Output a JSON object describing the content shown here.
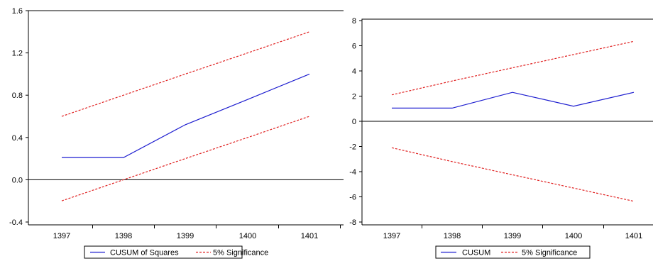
{
  "colors": {
    "series": "#1f1fd0",
    "significance": "#e02020",
    "axis": "#000000",
    "frame": "#000000"
  },
  "chart_data": [
    {
      "type": "line",
      "x": [
        "1397",
        "1398",
        "1399",
        "1400",
        "1401"
      ],
      "ylim": [
        -0.4,
        1.6
      ],
      "yticks": [
        -0.4,
        0.0,
        0.4,
        0.8,
        1.2,
        1.6
      ],
      "ytick_labels": [
        "-0.4",
        "0.0",
        "0.4",
        "0.8",
        "1.2",
        "1.6"
      ],
      "grid": false,
      "legend_position": "bottom",
      "series": [
        {
          "name": "CUSUM of Squares",
          "style": "solid",
          "values": [
            0.21,
            0.21,
            0.52,
            0.76,
            1.0
          ]
        },
        {
          "name": "5% Significance",
          "style": "dashed",
          "values": [
            0.6,
            0.8,
            1.0,
            1.2,
            1.4
          ]
        },
        {
          "name": "5% Significance",
          "style": "dashed",
          "values": [
            -0.2,
            0.0,
            0.2,
            0.4,
            0.6
          ]
        }
      ]
    },
    {
      "type": "line",
      "x": [
        "1397",
        "1398",
        "1399",
        "1400",
        "1401"
      ],
      "ylim": [
        -8,
        8
      ],
      "yticks": [
        -8,
        -6,
        -4,
        -2,
        0,
        2,
        4,
        6,
        8
      ],
      "ytick_labels": [
        "-8",
        "-6",
        "-4",
        "-2",
        "0",
        "2",
        "4",
        "6",
        "8"
      ],
      "grid": false,
      "legend_position": "bottom",
      "series": [
        {
          "name": "CUSUM",
          "style": "solid",
          "values": [
            1.05,
            1.05,
            2.3,
            1.2,
            2.3
          ]
        },
        {
          "name": "5% Significance",
          "style": "dashed",
          "values": [
            2.1,
            3.2,
            4.25,
            5.3,
            6.35
          ]
        },
        {
          "name": "5% Significance",
          "style": "dashed",
          "values": [
            -2.1,
            -3.2,
            -4.25,
            -5.3,
            -6.35
          ]
        }
      ]
    }
  ],
  "legends": [
    {
      "solid_label": "CUSUM of Squares",
      "dashed_label": "5% Significance"
    },
    {
      "solid_label": "CUSUM",
      "dashed_label": "5% Significance"
    }
  ]
}
